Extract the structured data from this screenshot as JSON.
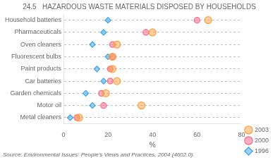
{
  "chart_data": {
    "type": "dot",
    "orientation": "horizontal",
    "title": "24.5   HAZARDOUS WASTE MATERIALS DISPOSED BY HOUSEHOLDS",
    "subtitle": "Source: Environmental Issues: People's Views and Practices, 2004 (4602.0).",
    "categories": [
      "Household batteries",
      "Pharmaceuticals",
      "Oven cleaners",
      "Fluorescent bulbs",
      "Paint products",
      "Car batteries",
      "Garden chemicals",
      "Motor oil",
      "Metal cleaners"
    ],
    "series": [
      {
        "name": "1996",
        "marker": "diamond",
        "values": [
          20,
          18,
          13,
          20,
          15,
          18,
          10,
          13,
          3
        ]
      },
      {
        "name": "2000",
        "marker": "circle",
        "values": [
          60,
          37,
          22,
          22,
          21,
          21,
          17,
          18,
          6
        ]
      },
      {
        "name": "2003",
        "marker": "circle",
        "values": [
          65,
          40,
          24,
          22,
          22,
          24,
          19,
          35,
          7
        ]
      }
    ],
    "xlabel": "%",
    "xlim": [
      0,
      80
    ],
    "xticks": [
      0,
      20,
      40,
      60,
      80
    ],
    "grid": true,
    "legend": "lower right"
  }
}
